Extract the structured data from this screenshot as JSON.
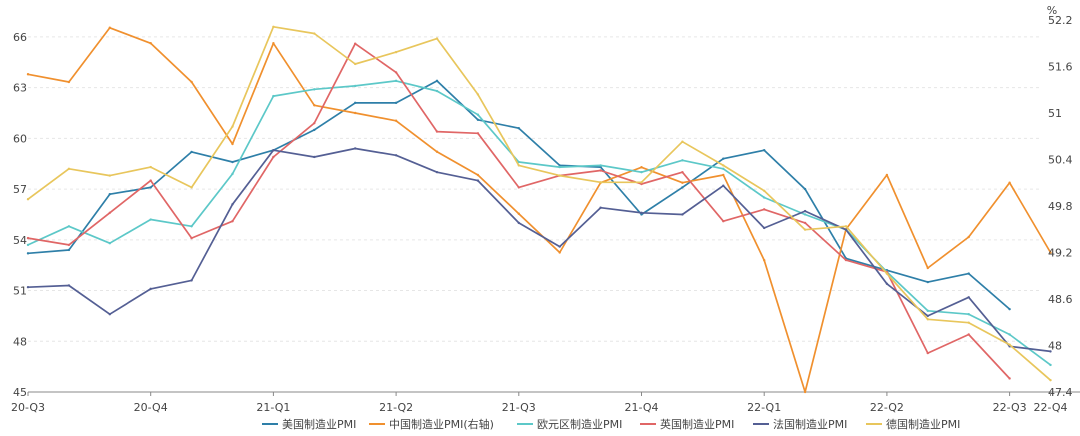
{
  "chart_data": {
    "type": "line",
    "title": "",
    "xlabel": "",
    "ylabel": "",
    "y2label": "%",
    "ylim": [
      45,
      67
    ],
    "y2lim": [
      47.4,
      52.2
    ],
    "y_ticks": [
      45,
      48,
      51,
      54,
      57,
      60,
      63,
      66
    ],
    "y2_ticks": [
      "47.4",
      "48",
      "48.6",
      "49.2",
      "49.8",
      "50.4",
      "51",
      "51.6",
      "52.2"
    ],
    "x_tick_labels": [
      {
        "i": 0,
        "label": "20-Q3"
      },
      {
        "i": 3,
        "label": "20-Q4"
      },
      {
        "i": 6,
        "label": "21-Q1"
      },
      {
        "i": 9,
        "label": "21-Q2"
      },
      {
        "i": 12,
        "label": "21-Q3"
      },
      {
        "i": 15,
        "label": "21-Q4"
      },
      {
        "i": 18,
        "label": "22-Q1"
      },
      {
        "i": 21,
        "label": "22-Q2"
      },
      {
        "i": 24,
        "label": "22-Q3"
      },
      {
        "i": 25,
        "label": "22-Q4"
      }
    ],
    "grid": true,
    "legend_position": "bottom",
    "series": [
      {
        "name": "美国制造业PMI",
        "axis": "left",
        "color": "#2e7fa8",
        "values": [
          53.2,
          53.4,
          56.7,
          57.1,
          59.2,
          58.6,
          59.3,
          60.5,
          62.1,
          62.1,
          63.4,
          61.1,
          60.6,
          58.4,
          58.3,
          55.5,
          57.1,
          58.8,
          59.3,
          57.0,
          52.9,
          52.2,
          51.5,
          52.0,
          49.9
        ]
      },
      {
        "name": "中国制造业PMI(右轴)",
        "axis": "right",
        "color": "#f0902e",
        "values": [
          51.5,
          51.4,
          52.1,
          51.9,
          51.4,
          50.6,
          51.9,
          51.1,
          51.0,
          50.9,
          50.5,
          50.2,
          49.7,
          49.2,
          50.1,
          50.3,
          50.1,
          50.2,
          49.1,
          47.4,
          49.5,
          50.2,
          49.0,
          49.4,
          50.1,
          49.2
        ]
      },
      {
        "name": "欧元区制造业PMI",
        "axis": "left",
        "color": "#5cc8c8",
        "values": [
          53.7,
          54.8,
          53.8,
          55.2,
          54.8,
          57.9,
          62.5,
          62.9,
          63.1,
          63.4,
          62.8,
          61.4,
          58.6,
          58.3,
          58.4,
          58.0,
          58.7,
          58.2,
          56.5,
          55.5,
          54.6,
          52.1,
          49.8,
          49.6,
          48.4,
          46.6
        ]
      },
      {
        "name": "英国制造业PMI",
        "axis": "left",
        "color": "#e06666",
        "values": [
          54.1,
          53.7,
          55.6,
          57.5,
          54.1,
          55.1,
          58.9,
          60.9,
          65.6,
          63.9,
          60.4,
          60.3,
          57.1,
          57.8,
          58.1,
          57.3,
          58.0,
          55.1,
          55.8,
          55.0,
          52.8,
          52.1,
          47.3,
          48.4,
          45.8
        ]
      },
      {
        "name": "法国制造业PMI",
        "axis": "left",
        "color": "#545f94",
        "values": [
          51.2,
          51.3,
          49.6,
          51.1,
          51.6,
          56.1,
          59.3,
          58.9,
          59.4,
          59.0,
          58.0,
          57.5,
          55.0,
          53.6,
          55.9,
          55.6,
          55.5,
          57.2,
          54.7,
          55.7,
          54.6,
          51.4,
          49.5,
          50.6,
          47.7,
          47.4
        ]
      },
      {
        "name": "德国制造业PMI",
        "axis": "left",
        "color": "#e8c65c",
        "values": [
          56.4,
          58.2,
          57.8,
          58.3,
          57.1,
          60.7,
          66.6,
          66.2,
          64.4,
          65.1,
          65.9,
          62.6,
          58.4,
          57.8,
          57.4,
          57.4,
          59.8,
          58.4,
          56.9,
          54.6,
          54.8,
          52.0,
          49.3,
          49.1,
          47.8,
          45.7
        ]
      }
    ]
  }
}
